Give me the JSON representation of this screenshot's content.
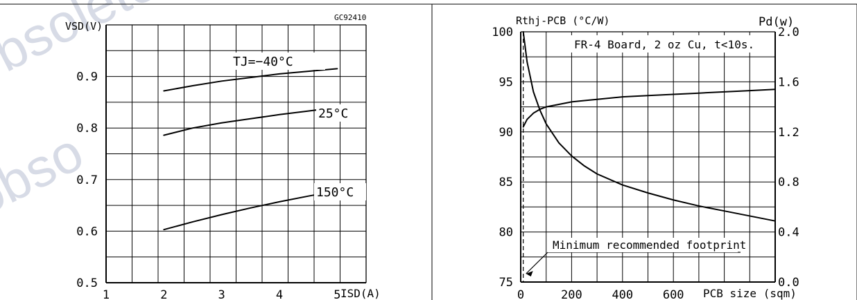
{
  "watermark": {
    "text1": "obsolete",
    "text2": "obso"
  },
  "chart_data": [
    {
      "type": "line",
      "id": "GC92410",
      "title": "",
      "xlabel": "ISD(A)",
      "ylabel": "VSD(V)",
      "xlim": [
        1,
        5.5
      ],
      "ylim": [
        0.5,
        1.0
      ],
      "xticks": [
        1,
        2,
        3,
        4,
        5
      ],
      "xtick_labels": [
        "1",
        "2",
        "3",
        "4",
        "5"
      ],
      "yticks": [
        0.5,
        0.6,
        0.7,
        0.8,
        0.9
      ],
      "ytick_labels": [
        "0.5",
        "0.6",
        "0.7",
        "0.8",
        "0.9"
      ],
      "grid": true,
      "series": [
        {
          "name": "TJ=−40°C",
          "x": [
            2,
            2.5,
            3,
            3.5,
            4,
            4.5,
            5
          ],
          "y": [
            0.872,
            0.882,
            0.891,
            0.898,
            0.905,
            0.91,
            0.915
          ]
        },
        {
          "name": "25°C",
          "x": [
            2,
            2.5,
            3,
            3.5,
            4,
            4.5,
            5
          ],
          "y": [
            0.786,
            0.8,
            0.81,
            0.818,
            0.826,
            0.833,
            0.84
          ]
        },
        {
          "name": "150°C",
          "x": [
            2,
            2.5,
            3,
            3.5,
            4,
            4.5,
            5
          ],
          "y": [
            0.603,
            0.618,
            0.632,
            0.645,
            0.657,
            0.668,
            0.678
          ]
        }
      ]
    },
    {
      "type": "line",
      "title": "",
      "annotation": "FR-4 Board, 2 oz Cu, t<10s.",
      "xlabel": "PCB size (sqm)",
      "ylabel_left": "Rthj-PCB (°C/W)",
      "ylabel_right": "Pd(w)",
      "xlim": [
        0,
        1000
      ],
      "ylim_left": [
        75,
        100
      ],
      "ylim_right": [
        0.0,
        2.0
      ],
      "xticks": [
        0,
        200,
        400,
        600
      ],
      "xtick_labels": [
        "0",
        "200",
        "400",
        "600"
      ],
      "yticks_left": [
        75,
        80,
        85,
        90,
        95,
        100
      ],
      "ytick_labels_left": [
        "75",
        "80",
        "85",
        "90",
        "95",
        "100"
      ],
      "yticks_right": [
        0.0,
        0.4,
        0.8,
        1.2,
        1.6,
        2.0
      ],
      "ytick_labels_right": [
        "0.0",
        "0.4",
        "0.8",
        "1.2",
        "1.6",
        "2.0"
      ],
      "grid": true,
      "reference_line": {
        "x": 10,
        "label": "Minimum recommended footprint"
      },
      "series": [
        {
          "axis": "left",
          "x": [
            10,
            25,
            50,
            75,
            100,
            150,
            200,
            250,
            300,
            400,
            500,
            600,
            700,
            800,
            900,
            1000
          ],
          "y": [
            100,
            97.0,
            94.0,
            92.2,
            90.8,
            88.9,
            87.6,
            86.6,
            85.8,
            84.7,
            83.9,
            83.2,
            82.6,
            82.1,
            81.6,
            81.1
          ]
        },
        {
          "axis": "right",
          "x": [
            10,
            25,
            50,
            75,
            100,
            150,
            200,
            250,
            300,
            400,
            500,
            600,
            700,
            800,
            900,
            1000
          ],
          "y": [
            1.24,
            1.3,
            1.35,
            1.38,
            1.4,
            1.42,
            1.44,
            1.45,
            1.46,
            1.48,
            1.49,
            1.5,
            1.51,
            1.52,
            1.53,
            1.54
          ]
        }
      ]
    }
  ]
}
